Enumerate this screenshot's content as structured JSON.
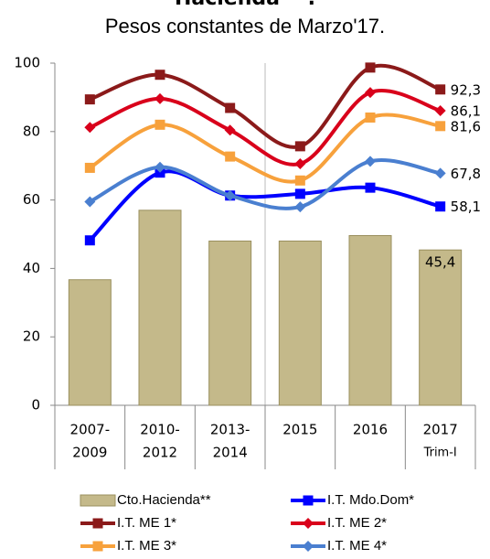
{
  "chart_data": {
    "type": "bar",
    "title": "Hacienda **.",
    "subtitle": "Pesos constantes de Marzo'17.",
    "categories": [
      [
        "2007-",
        "2009"
      ],
      [
        "2010-",
        "2012"
      ],
      [
        "2013-",
        "2014"
      ],
      [
        "2015"
      ],
      [
        "2016"
      ],
      [
        "2017",
        "Trim-I"
      ]
    ],
    "ylim": [
      0,
      100
    ],
    "yticks": [
      0,
      20,
      40,
      60,
      80,
      100
    ],
    "series": [
      {
        "name": "Cto.Hacienda**",
        "type": "bar",
        "color": "#c4b98a",
        "values": [
          36.7,
          57,
          48,
          48,
          49.6,
          45.4
        ],
        "value_labels": [
          null,
          null,
          null,
          null,
          null,
          "45,4"
        ]
      },
      {
        "name": "I.T. Mdo.Dom*",
        "type": "line",
        "marker": "square",
        "color": "#0000ff",
        "values": [
          48.2,
          68,
          61.3,
          61.8,
          63.6,
          58.1
        ],
        "value_labels": [
          null,
          null,
          null,
          null,
          null,
          "58,1"
        ]
      },
      {
        "name": "I.T. ME 1*",
        "type": "line",
        "marker": "square",
        "color": "#8b1a1a",
        "values": [
          89.4,
          96.6,
          86.9,
          75.7,
          98.7,
          92.3
        ],
        "value_labels": [
          null,
          null,
          null,
          null,
          null,
          "92,3"
        ]
      },
      {
        "name": "I.T. ME 2*",
        "type": "line",
        "marker": "diamond",
        "color": "#d9001b",
        "values": [
          81.2,
          89.6,
          80.4,
          70.6,
          91.4,
          86.1
        ],
        "value_labels": [
          null,
          null,
          null,
          null,
          null,
          "86,1"
        ]
      },
      {
        "name": "I.T. ME 3*",
        "type": "line",
        "marker": "square",
        "color": "#f7a13c",
        "values": [
          69.4,
          82,
          72.7,
          65.7,
          84.1,
          81.6
        ],
        "value_labels": [
          null,
          null,
          null,
          null,
          null,
          "81,6"
        ]
      },
      {
        "name": "I.T. ME 4*",
        "type": "line",
        "marker": "diamond",
        "color": "#4a7fd0",
        "values": [
          59.5,
          69.6,
          61.3,
          58,
          71.3,
          67.8
        ],
        "value_labels": [
          null,
          null,
          null,
          null,
          null,
          "67,8"
        ]
      }
    ]
  }
}
